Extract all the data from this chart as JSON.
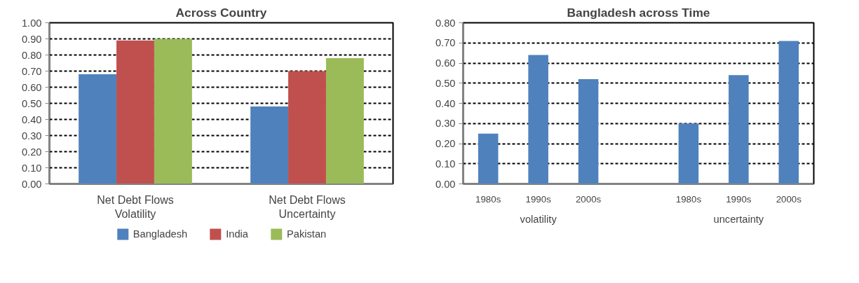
{
  "chart_data": [
    {
      "type": "bar",
      "title": "Across Country",
      "categories": [
        "Net Debt Flows\nVolatility",
        "Net Debt Flows\nUncertainty"
      ],
      "series": [
        {
          "name": "Bangladesh",
          "color": "#4f81bd",
          "values": [
            0.68,
            0.48
          ]
        },
        {
          "name": "India",
          "color": "#c0504d",
          "values": [
            0.89,
            0.7
          ]
        },
        {
          "name": "Pakistan",
          "color": "#9bbb59",
          "values": [
            0.9,
            0.78
          ]
        }
      ],
      "ylim": [
        0,
        1.0
      ],
      "yticks": [
        {
          "value": 0,
          "label": "0.00"
        },
        {
          "value": 0.1,
          "label": "0.10"
        },
        {
          "value": 0.2,
          "label": "0.20"
        },
        {
          "value": 0.3,
          "label": "0.30"
        },
        {
          "value": 0.4,
          "label": "0.40"
        },
        {
          "value": 0.5,
          "label": "0.50"
        },
        {
          "value": 0.6,
          "label": "0.60"
        },
        {
          "value": 0.7,
          "label": "0.70"
        },
        {
          "value": 0.8,
          "label": "0.80"
        },
        {
          "value": 0.9,
          "label": "0.90"
        },
        {
          "value": 1.0,
          "label": "1.00"
        }
      ],
      "grid": "y",
      "legend": "bottom"
    },
    {
      "type": "bar",
      "title": "Bangladesh across Time",
      "categories": [
        "1980s",
        "1990s",
        "2000s",
        null,
        "1980s",
        "1990s",
        "2000s"
      ],
      "values": [
        0.25,
        0.64,
        0.52,
        null,
        0.3,
        0.54,
        0.71
      ],
      "color": "#4f81bd",
      "ylim": [
        0,
        0.8
      ],
      "yticks": [
        {
          "value": 0,
          "label": "0.00"
        },
        {
          "value": 0.1,
          "label": "0.10"
        },
        {
          "value": 0.2,
          "label": "0.20"
        },
        {
          "value": 0.3,
          "label": "0.30"
        },
        {
          "value": 0.4,
          "label": "0.40"
        },
        {
          "value": 0.5,
          "label": "0.50"
        },
        {
          "value": 0.6,
          "label": "0.60"
        },
        {
          "value": 0.7,
          "label": "0.70"
        },
        {
          "value": 0.8,
          "label": "0.80"
        }
      ],
      "annotations": [
        "volatility",
        "uncertainty"
      ],
      "grid": "y"
    }
  ]
}
